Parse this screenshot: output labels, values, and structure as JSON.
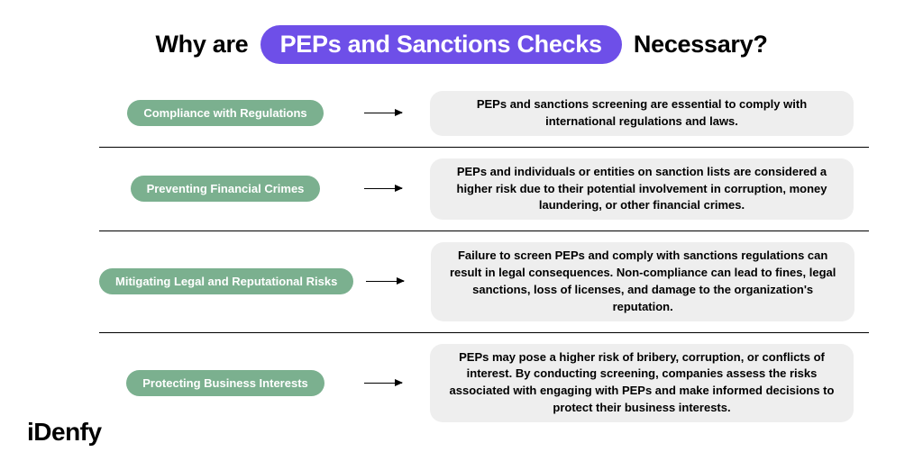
{
  "title": {
    "prefix": "Why are",
    "highlight": "PEPs and Sanctions Checks",
    "suffix": "Necessary?"
  },
  "colors": {
    "highlight_bg": "#6e4fe8",
    "highlight_fg": "#ffffff",
    "pill_bg": "#7bb08f",
    "pill_fg": "#ffffff",
    "desc_bg": "#eeeeee",
    "desc_fg": "#000000",
    "divider": "#000000",
    "page_bg": "#ffffff"
  },
  "typography": {
    "title_fontsize": 27,
    "title_weight": 800,
    "pill_fontsize": 13,
    "pill_weight": 700,
    "desc_fontsize": 13,
    "desc_weight": 700
  },
  "rows": [
    {
      "label": "Compliance with Regulations",
      "desc": "PEPs and sanctions screening are essential to comply with international regulations and laws."
    },
    {
      "label": "Preventing Financial Crimes",
      "desc": "PEPs and individuals or entities on sanction lists are considered a higher risk due to their potential involvement in corruption, money laundering, or other financial crimes."
    },
    {
      "label": "Mitigating Legal and Reputational Risks",
      "desc": "Failure to screen PEPs and comply with sanctions regulations can result in legal consequences. Non-compliance can lead to fines, legal sanctions, loss of licenses, and damage to the organization's reputation."
    },
    {
      "label": "Protecting Business Interests",
      "desc": "PEPs may pose a higher risk of bribery, corruption, or conflicts of interest. By conducting screening, companies assess the risks associated with engaging with PEPs and make informed decisions to protect their business interests."
    }
  ],
  "logo": "iDenfy"
}
